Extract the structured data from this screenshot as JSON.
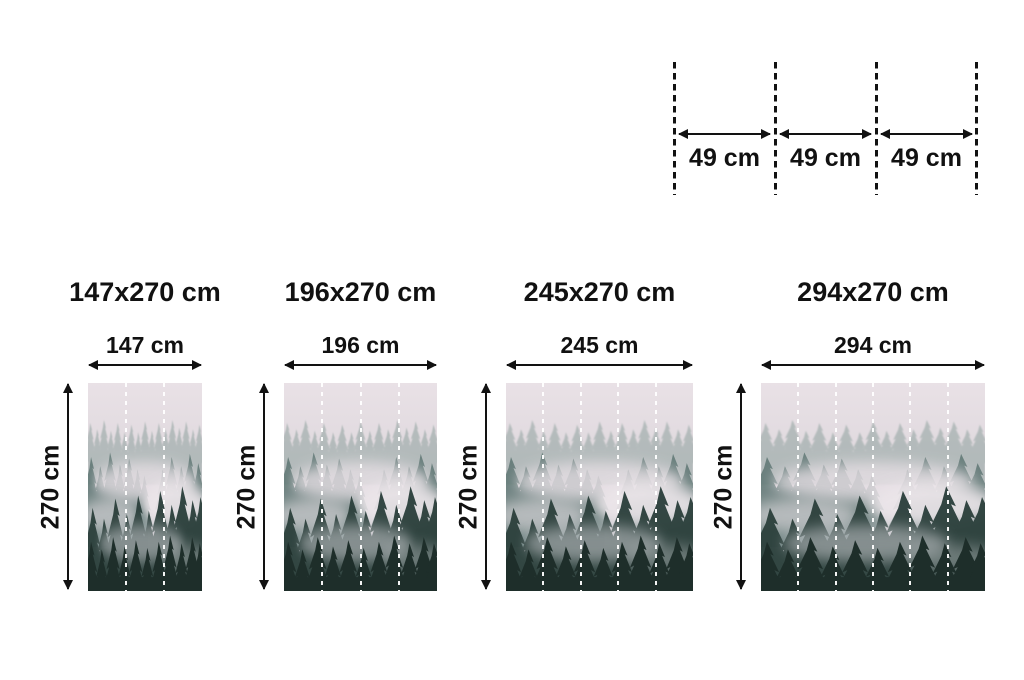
{
  "panel_guide": {
    "segments": [
      {
        "label": "49 cm"
      },
      {
        "label": "49 cm"
      },
      {
        "label": "49 cm"
      }
    ]
  },
  "sizes": [
    {
      "title": "147x270 cm",
      "width_label": "147 cm",
      "height_label": "270 cm",
      "panels": 3
    },
    {
      "title": "196x270 cm",
      "width_label": "196 cm",
      "height_label": "270 cm",
      "panels": 4
    },
    {
      "title": "245x270 cm",
      "width_label": "245 cm",
      "height_label": "270 cm",
      "panels": 5
    },
    {
      "title": "294x270 cm",
      "width_label": "294 cm",
      "height_label": "270 cm",
      "panels": 6
    }
  ],
  "artwork": {
    "name": "foggy-forest-mural",
    "colors": {
      "sky_top": "#e9e1e6",
      "sky_bottom": "#c6c6c9",
      "distant_trees": "#8fa19e",
      "mid_trees": "#5e7673",
      "foreground_trees": "#2e423e",
      "deep_trees": "#1e2e2a",
      "fog": "#ece6ea",
      "panel_divider": "#ffffff",
      "text": "#111111"
    }
  }
}
